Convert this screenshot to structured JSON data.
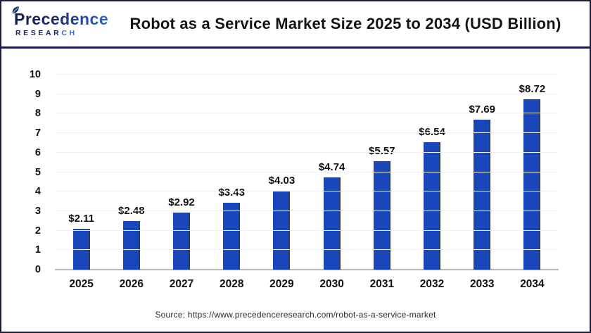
{
  "header": {
    "logo": {
      "brand": "Precedence",
      "research_left": "RESEAR",
      "research_right": "CH"
    },
    "title": "Robot as a Service Market Size 2025 to 2034 (USD Billion)"
  },
  "chart_data": {
    "type": "bar",
    "title": "Robot as a Service Market Size 2025 to 2034 (USD Billion)",
    "categories": [
      "2025",
      "2026",
      "2027",
      "2028",
      "2029",
      "2030",
      "2031",
      "2032",
      "2033",
      "2034"
    ],
    "values": [
      2.11,
      2.48,
      2.92,
      3.43,
      4.03,
      4.74,
      5.57,
      6.54,
      7.69,
      8.72
    ],
    "bar_labels": [
      "$2.11",
      "$2.48",
      "$2.92",
      "$3.43",
      "$4.03",
      "$4.74",
      "$5.57",
      "$6.54",
      "$7.69",
      "$8.72"
    ],
    "xlabel": "",
    "ylabel": "",
    "ylim": [
      0,
      10
    ],
    "yticks": [
      0,
      1,
      2,
      3,
      4,
      5,
      6,
      7,
      8,
      9,
      10
    ],
    "grid": true,
    "legend": "none",
    "bar_color": "#1a46bb"
  },
  "footer": {
    "source": "Source: https://www.precedenceresearch.com/robot-as-a-service-market"
  }
}
